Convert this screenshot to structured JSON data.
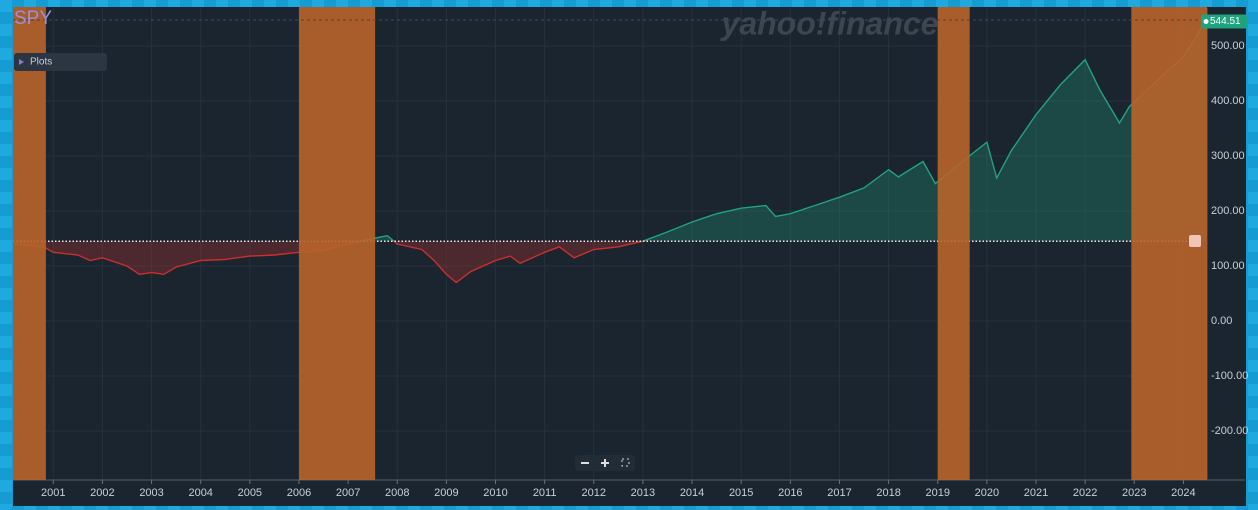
{
  "chart_data": {
    "type": "line",
    "title": "SPY",
    "menu_label": "Plots",
    "watermark": "yahoo!finance",
    "x": [
      2000.2,
      2000.8,
      2001.0,
      2001.5,
      2001.75,
      2002.0,
      2002.5,
      2002.75,
      2003.0,
      2003.25,
      2003.5,
      2004.0,
      2004.5,
      2005.0,
      2005.5,
      2006.0,
      2006.5,
      2007.0,
      2007.5,
      2007.8,
      2008.0,
      2008.5,
      2008.75,
      2009.0,
      2009.2,
      2009.5,
      2010.0,
      2010.3,
      2010.5,
      2011.0,
      2011.3,
      2011.6,
      2012.0,
      2012.5,
      2013.0,
      2013.5,
      2014.0,
      2014.5,
      2015.0,
      2015.5,
      2015.7,
      2016.0,
      2016.5,
      2017.0,
      2017.5,
      2018.0,
      2018.2,
      2018.7,
      2018.95,
      2019.5,
      2020.0,
      2020.2,
      2020.5,
      2021.0,
      2021.5,
      2022.0,
      2022.3,
      2022.7,
      2022.9,
      2023.5,
      2024.0,
      2024.45
    ],
    "series": [
      {
        "name": "SPY",
        "values": [
          140,
          135,
          125,
          120,
          110,
          115,
          100,
          85,
          88,
          85,
          98,
          110,
          112,
          118,
          120,
          125,
          128,
          140,
          150,
          155,
          140,
          130,
          110,
          85,
          70,
          90,
          110,
          118,
          105,
          125,
          135,
          115,
          130,
          135,
          145,
          162,
          180,
          195,
          205,
          210,
          190,
          195,
          210,
          225,
          242,
          275,
          262,
          290,
          250,
          290,
          325,
          260,
          310,
          375,
          430,
          475,
          420,
          360,
          390,
          440,
          480,
          544.51
        ]
      }
    ],
    "up_color": "#1fa37f",
    "down_color": "#c9302c",
    "baseline": 145,
    "last_price": 544.51,
    "highlight_color": "#b8642a",
    "highlight_ranges": [
      [
        2000.18,
        2000.85
      ],
      [
        2006.0,
        2007.55
      ],
      [
        2019.0,
        2019.65
      ],
      [
        2022.94,
        2024.48
      ]
    ],
    "xlim": [
      2000.18,
      2024.48
    ],
    "xticks": [
      2001,
      2002,
      2003,
      2004,
      2005,
      2006,
      2007,
      2008,
      2009,
      2010,
      2011,
      2012,
      2013,
      2014,
      2015,
      2016,
      2017,
      2018,
      2019,
      2020,
      2021,
      2022,
      2023,
      2024
    ],
    "ylim": [
      -289,
      569
    ],
    "yticks": [
      {
        "value": -200,
        "label": "-200.00"
      },
      {
        "value": -100,
        "label": "-100.00"
      },
      {
        "value": 0,
        "label": "0.00"
      },
      {
        "value": 100,
        "label": "100.00"
      },
      {
        "value": 200,
        "label": "200.00"
      },
      {
        "value": 300,
        "label": "300.00"
      },
      {
        "value": 400,
        "label": "400.00"
      },
      {
        "value": 500,
        "label": "500.00"
      }
    ],
    "grid": true
  }
}
